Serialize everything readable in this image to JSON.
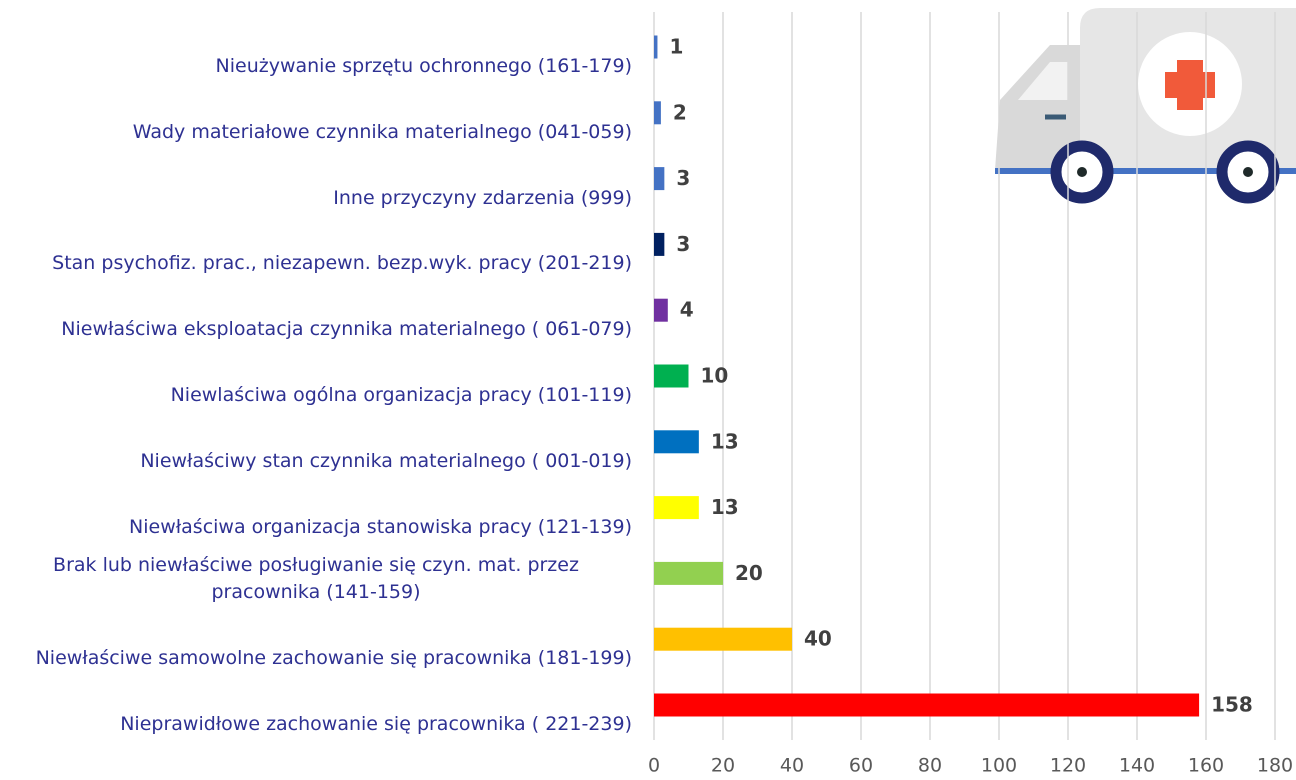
{
  "chart_data": {
    "type": "barh",
    "categories": [
      "Nieużywanie sprzętu ochronnego (161-179)",
      "Wady materiałowe czynnika materialnego (041-059)",
      "Inne przyczyny zdarzenia (999)",
      "Stan psychofiz. prac., niezapewn. bezp.wyk. pracy (201-219)",
      "Niewłaściwa eksploatacja czynnika materialnego ( 061-079)",
      "Niewlaściwa ogólna organizacja pracy (101-119)",
      "Niewłaściwy stan czynnika materialnego ( 001-019)",
      "Niewłaściwa organizacja stanowiska pracy (121-139)",
      "Brak lub niewłaściwe posługiwanie się czyn. mat. przez pracownika (141-159)",
      "Niewłaściwe samowolne zachowanie się pracownika (181-199)",
      "Nieprawidłowe zachowanie się pracownika ( 221-239)"
    ],
    "values": [
      1,
      2,
      3,
      3,
      4,
      10,
      13,
      13,
      20,
      40,
      158
    ],
    "colors": [
      "#4472c4",
      "#4472c4",
      "#4472c4",
      "#002060",
      "#7030a0",
      "#00b050",
      "#0070c0",
      "#ffff00",
      "#92d050",
      "#ffc000",
      "#ff0000"
    ],
    "xlim": [
      0,
      180
    ],
    "xticks": [
      0,
      20,
      40,
      60,
      80,
      100,
      120,
      140,
      160,
      180
    ],
    "grid": true
  }
}
